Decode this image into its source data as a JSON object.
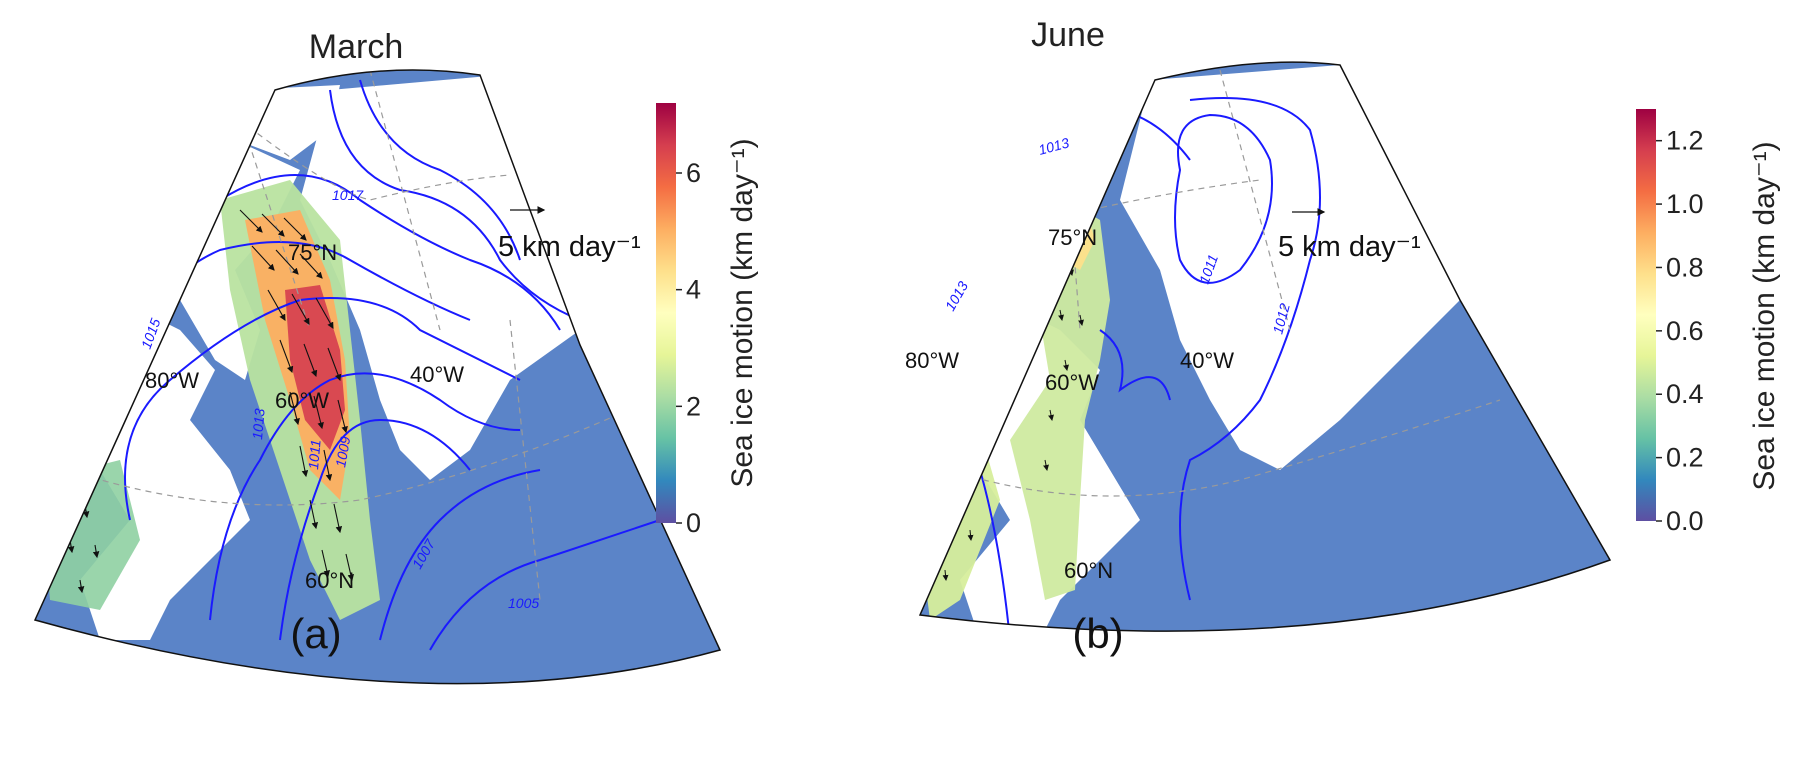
{
  "figure": {
    "panels": [
      {
        "id": "a",
        "title": "March",
        "panel_label": "(a)",
        "lat_labels": [
          "75°N",
          "60°N"
        ],
        "lon_labels": [
          "80°W",
          "60°W",
          "40°W"
        ],
        "isobar_labels": [
          "1017",
          "1015",
          "1013",
          "1011",
          "1009",
          "1007",
          "1005"
        ],
        "reference_arrow_label": "5 km day⁻¹",
        "colorbar": {
          "label": "Sea ice motion (km day⁻¹)",
          "min": 0,
          "max": 7.2,
          "ticks": [
            "0",
            "2",
            "4",
            "6"
          ],
          "tick_values": [
            0,
            2,
            4,
            6
          ],
          "colormap": "Spectral_r"
        }
      },
      {
        "id": "b",
        "title": "June",
        "panel_label": "(b)",
        "lat_labels": [
          "75°N",
          "60°N"
        ],
        "lon_labels": [
          "80°W",
          "60°W",
          "40°W"
        ],
        "isobar_labels": [
          "1013",
          "1013",
          "1011",
          "1012"
        ],
        "reference_arrow_label": "5 km day⁻¹",
        "colorbar": {
          "label": "Sea ice motion (km day⁻¹)",
          "min": 0,
          "max": 1.3,
          "ticks": [
            "0.0",
            "0.2",
            "0.4",
            "0.6",
            "0.8",
            "1.0",
            "1.2"
          ],
          "tick_values": [
            0,
            0.2,
            0.4,
            0.6,
            0.8,
            1.0,
            1.2
          ],
          "colormap": "Spectral_r"
        }
      }
    ],
    "colors": {
      "ocean": "#5b84c8",
      "land": "#ffffff",
      "isobar": "#1a1aff",
      "coast": "#7a7a7a",
      "arrow": "#111111",
      "gridline": "#9a9a9a"
    }
  }
}
